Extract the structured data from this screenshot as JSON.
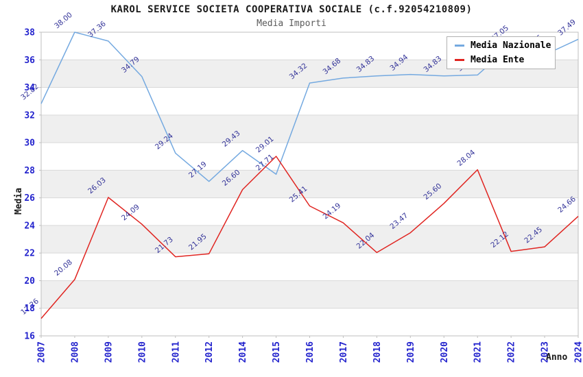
{
  "chart_data": {
    "type": "line",
    "title": "KAROL SERVICE SOCIETA COOPERATIVA SOCIALE (c.f.92054210809)",
    "subtitle": "Media Importi",
    "xlabel": "Anno",
    "ylabel": "Media",
    "x": [
      "2007",
      "2008",
      "2009",
      "2010",
      "2011",
      "2012",
      "2014",
      "2015",
      "2016",
      "2017",
      "2018",
      "2019",
      "2020",
      "2021",
      "2022",
      "2023",
      "2024"
    ],
    "series": [
      {
        "name": "Media Nazionale",
        "color": "#74a9e0",
        "values": [
          32.82,
          38.0,
          37.36,
          34.79,
          29.24,
          27.19,
          29.43,
          27.71,
          34.32,
          34.68,
          34.83,
          34.94,
          34.83,
          34.9,
          37.05,
          36.36,
          37.49
        ]
      },
      {
        "name": "Media Ente",
        "color": "#e02420",
        "values": [
          17.26,
          20.08,
          26.03,
          24.09,
          21.73,
          21.95,
          26.6,
          29.01,
          25.41,
          24.19,
          22.04,
          23.47,
          25.6,
          28.04,
          22.12,
          22.45,
          24.66
        ]
      }
    ],
    "ylim": [
      16,
      38
    ],
    "ytick_step": 2,
    "grid": "horizontal gridlines with alternating gray bands",
    "legend_position": "top-right",
    "colors": {
      "tick_label": "#2323cd",
      "point_label": "#343499",
      "band_gray": "#efefef",
      "gridline": "#d9d9d9",
      "plot_border": "#bfbfbf"
    }
  }
}
